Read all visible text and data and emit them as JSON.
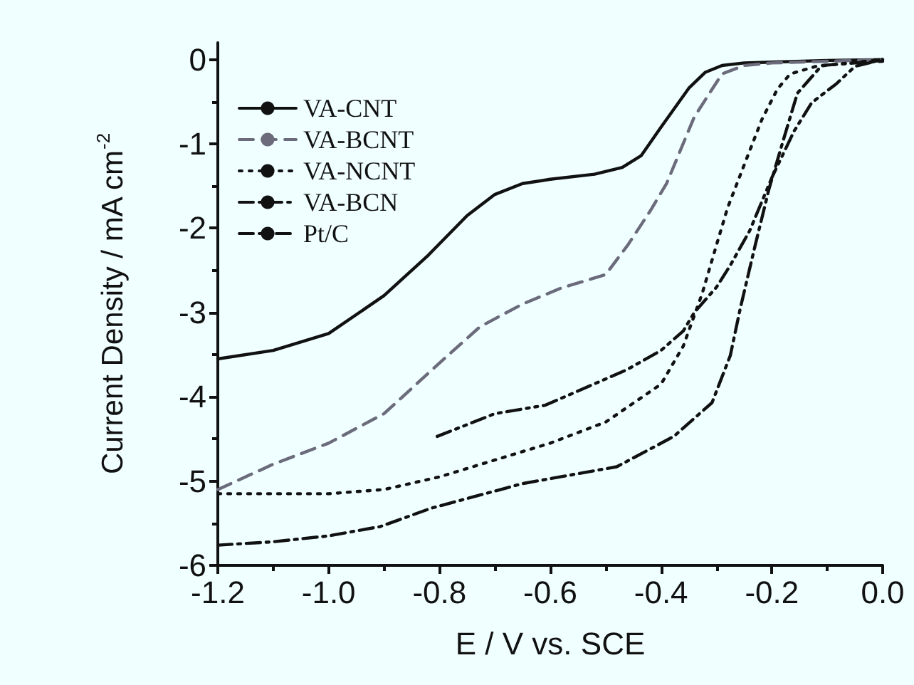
{
  "chart_data": {
    "type": "line",
    "xlabel": "E / V vs. SCE",
    "ylabel": "Current Density / mA cm$^{-2}$",
    "xlim": [
      -1.2,
      0.0
    ],
    "xticks": [
      {
        "value": -1.2,
        "label": "-1.2"
      },
      {
        "value": -1.0,
        "label": "-1.0"
      },
      {
        "value": -0.8,
        "label": "-0.8"
      },
      {
        "value": -0.6,
        "label": "-0.6"
      },
      {
        "value": -0.4,
        "label": "-0.4"
      },
      {
        "value": -0.2,
        "label": "-0.2"
      },
      {
        "value": 0.0,
        "label": "0.0"
      }
    ],
    "ylim": [
      -6,
      0.2
    ],
    "yticks": [
      -6,
      -5,
      -4,
      -3,
      -2,
      -1,
      0
    ],
    "grid": false,
    "legend": "top left",
    "marker": "none",
    "series": [
      {
        "name": "VA-CNT",
        "color": "#111111",
        "line_style": "solid",
        "x": [
          -1.2,
          -1.1,
          -1.0,
          -0.9,
          -0.82,
          -0.75,
          -0.7,
          -0.65,
          -0.6,
          -0.52,
          -0.47,
          -0.436,
          -0.4,
          -0.35,
          -0.32,
          -0.29,
          -0.25,
          -0.2,
          -0.1,
          0.0
        ],
        "values": [
          -3.55,
          -3.45,
          -3.25,
          -2.8,
          -2.32,
          -1.85,
          -1.6,
          -1.47,
          -1.42,
          -1.36,
          -1.28,
          -1.14,
          -0.8,
          -0.34,
          -0.15,
          -0.07,
          -0.04,
          -0.03,
          -0.01,
          0.0
        ]
      },
      {
        "name": "VA-BCNT",
        "color": "#6b6b7b",
        "line_style": "dashed",
        "x": [
          -1.2,
          -1.1,
          -1.0,
          -0.9,
          -0.8,
          -0.727,
          -0.65,
          -0.58,
          -0.5,
          -0.46,
          -0.42,
          -0.39,
          -0.34,
          -0.29,
          -0.25,
          -0.2,
          -0.1,
          0.0
        ],
        "values": [
          -5.1,
          -4.8,
          -4.55,
          -4.2,
          -3.6,
          -3.17,
          -2.9,
          -2.71,
          -2.55,
          -2.2,
          -1.8,
          -1.47,
          -0.68,
          -0.17,
          -0.07,
          -0.04,
          -0.02,
          0.0
        ]
      },
      {
        "name": "VA-NCNT",
        "color": "#111111",
        "line_style": "dotted",
        "x": [
          -1.2,
          -1.1,
          -1.0,
          -0.9,
          -0.8,
          -0.7,
          -0.6,
          -0.5,
          -0.4,
          -0.36,
          -0.326,
          -0.3,
          -0.28,
          -0.25,
          -0.218,
          -0.19,
          -0.167,
          -0.12,
          -0.06,
          0.0
        ],
        "values": [
          -5.15,
          -5.15,
          -5.15,
          -5.1,
          -4.95,
          -4.75,
          -4.55,
          -4.3,
          -3.85,
          -3.4,
          -2.78,
          -2.2,
          -1.76,
          -1.25,
          -0.71,
          -0.35,
          -0.17,
          -0.08,
          -0.04,
          0.0
        ]
      },
      {
        "name": "VA-BCN",
        "color": "#111111",
        "line_style": "dashdot",
        "x": [
          -1.2,
          -1.1,
          -1.0,
          -0.907,
          -0.814,
          -0.65,
          -0.48,
          -0.377,
          -0.308,
          -0.275,
          -0.257,
          -0.23,
          -0.205,
          -0.18,
          -0.154,
          -0.11,
          -0.05,
          0.0
        ],
        "values": [
          -5.76,
          -5.72,
          -5.65,
          -5.54,
          -5.32,
          -5.03,
          -4.83,
          -4.47,
          -4.07,
          -3.51,
          -2.95,
          -2.2,
          -1.53,
          -0.97,
          -0.4,
          -0.07,
          -0.04,
          -0.02
        ]
      },
      {
        "name": "Pt/C",
        "color": "#111111",
        "line_style": "dashdotdot",
        "x": [
          -0.804,
          -0.7,
          -0.609,
          -0.462,
          -0.4,
          -0.36,
          -0.34,
          -0.3,
          -0.275,
          -0.24,
          -0.2,
          -0.16,
          -0.128,
          -0.084,
          -0.05,
          0.0
        ],
        "values": [
          -4.47,
          -4.2,
          -4.1,
          -3.68,
          -3.45,
          -3.22,
          -3.0,
          -2.7,
          -2.44,
          -2.03,
          -1.4,
          -0.85,
          -0.51,
          -0.29,
          -0.08,
          0.0
        ]
      }
    ]
  }
}
